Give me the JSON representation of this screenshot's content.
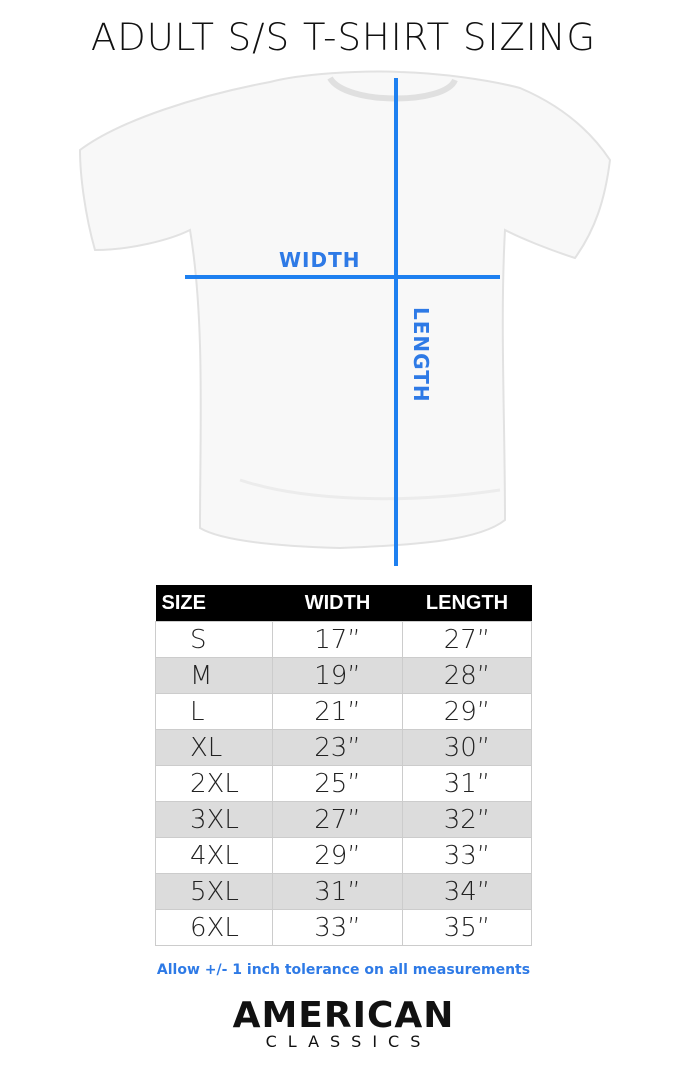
{
  "title": "ADULT S/S T-SHIRT SIZING",
  "diagram": {
    "width_label": "WIDTH",
    "length_label": "LENGTH",
    "line_color": "#1e80f0"
  },
  "table": {
    "headers": [
      "SIZE",
      "WIDTH",
      "LENGTH"
    ],
    "rows": [
      [
        "S",
        "17”",
        "27”"
      ],
      [
        "M",
        "19”",
        "28”"
      ],
      [
        "L",
        "21”",
        "29”"
      ],
      [
        "XL",
        "23”",
        "30”"
      ],
      [
        "2XL",
        "25”",
        "31”"
      ],
      [
        "3XL",
        "27”",
        "32”"
      ],
      [
        "4XL",
        "29”",
        "33”"
      ],
      [
        "5XL",
        "31”",
        "34”"
      ],
      [
        "6XL",
        "33”",
        "35”"
      ]
    ]
  },
  "note": "Allow +/- 1 inch tolerance on all measurements",
  "logo": {
    "line1": "AMERICAN",
    "line2": "CLASSICS"
  }
}
